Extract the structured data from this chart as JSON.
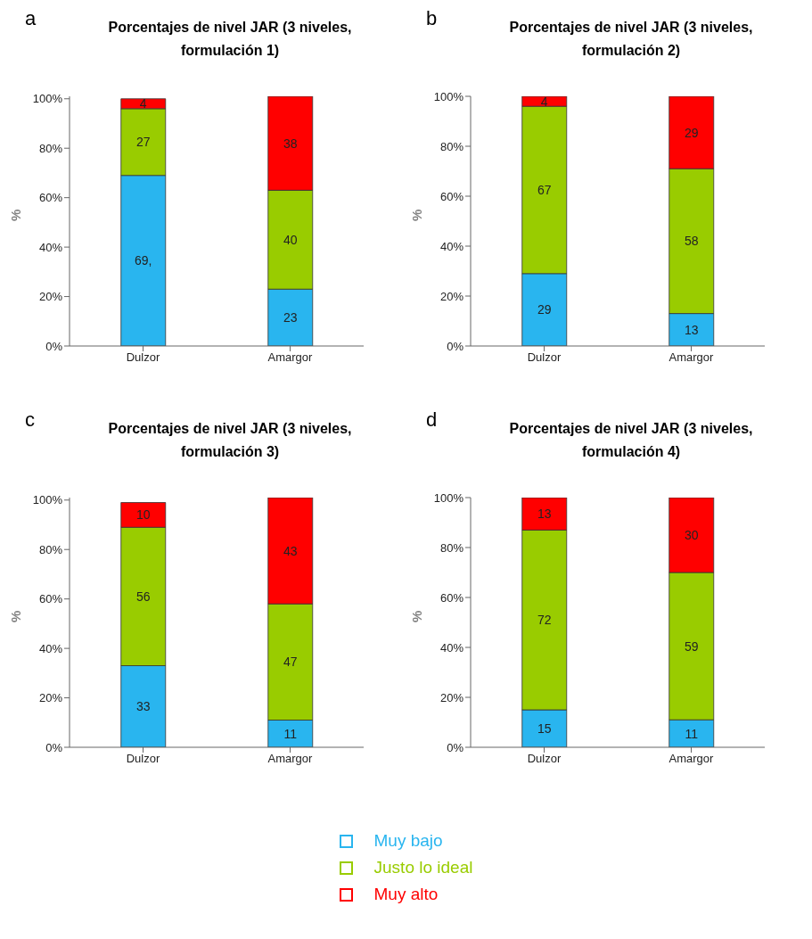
{
  "chart_data": [
    {
      "type": "bar",
      "title": "Porcentajes de nivel JAR (3 niveles, formulación 1)",
      "annotations": [
        "a"
      ],
      "ylabel": "%",
      "categories": [
        "Dulzor",
        "Amargor"
      ],
      "stacked": true,
      "ylim": [
        0,
        101
      ],
      "yticks": [
        {
          "value": 0,
          "label": "0%"
        },
        {
          "value": 20,
          "label": "20%"
        },
        {
          "value": 40,
          "label": "40%"
        },
        {
          "value": 60,
          "label": "60%"
        },
        {
          "value": 80,
          "label": "80%"
        },
        {
          "value": 100,
          "label": "100%"
        }
      ],
      "grid": false,
      "series": [
        {
          "color": "#29b5ef",
          "values": [
            69,
            23
          ],
          "value_labels": [
            "69,",
            "23"
          ]
        },
        {
          "color": "#99cc00",
          "values": [
            27,
            40
          ],
          "value_labels": [
            "27",
            "40"
          ]
        },
        {
          "color": "#ff0000",
          "values": [
            4,
            38
          ],
          "value_labels": [
            "4",
            "38"
          ]
        }
      ]
    },
    {
      "type": "bar",
      "title": "Porcentajes de nivel JAR (3 niveles, formulación 2)",
      "annotations": [
        "b"
      ],
      "ylabel": "%",
      "categories": [
        "Dulzor",
        "Amargor"
      ],
      "stacked": true,
      "ylim": [
        0,
        100
      ],
      "yticks": [
        {
          "value": 0,
          "label": "0%"
        },
        {
          "value": 20,
          "label": "20%"
        },
        {
          "value": 40,
          "label": "40%"
        },
        {
          "value": 60,
          "label": "60%"
        },
        {
          "value": 80,
          "label": "80%"
        },
        {
          "value": 100,
          "label": "100%"
        }
      ],
      "grid": false,
      "data_labels": true,
      "series": [
        {
          "color": "#29b5ef",
          "values": [
            29,
            13
          ]
        },
        {
          "color": "#99cc00",
          "values": [
            67,
            58
          ]
        },
        {
          "color": "#ff0000",
          "values": [
            4,
            29
          ]
        }
      ]
    },
    {
      "type": "bar",
      "title": "Porcentajes de nivel JAR (3 niveles, formulación 3)",
      "annotations": [
        "c"
      ],
      "ylabel": "%",
      "categories": [
        "Dulzor",
        "Amargor"
      ],
      "stacked": true,
      "ylim": [
        0,
        101
      ],
      "yticks": [
        {
          "value": 0,
          "label": "0%"
        },
        {
          "value": 20,
          "label": "20%"
        },
        {
          "value": 40,
          "label": "40%"
        },
        {
          "value": 60,
          "label": "60%"
        },
        {
          "value": 80,
          "label": "80%"
        },
        {
          "value": 100,
          "label": "100%"
        }
      ],
      "grid": false,
      "data_labels": true,
      "series": [
        {
          "color": "#29b5ef",
          "values": [
            33,
            11
          ]
        },
        {
          "color": "#99cc00",
          "values": [
            56,
            47
          ]
        },
        {
          "color": "#ff0000",
          "values": [
            10,
            43
          ]
        }
      ]
    },
    {
      "type": "bar",
      "title": "Porcentajes de nivel JAR (3 niveles, formulación 4)",
      "annotations": [
        "d"
      ],
      "ylabel": "%",
      "categories": [
        "Dulzor",
        "Amargor"
      ],
      "stacked": true,
      "ylim": [
        0,
        100
      ],
      "yticks": [
        {
          "value": 0,
          "label": "0%"
        },
        {
          "value": 20,
          "label": "20%"
        },
        {
          "value": 40,
          "label": "40%"
        },
        {
          "value": 60,
          "label": "60%"
        },
        {
          "value": 80,
          "label": "80%"
        },
        {
          "value": 100,
          "label": "100%"
        }
      ],
      "grid": false,
      "legend": "bottom",
      "data_labels": true,
      "series": [
        {
          "name": "Muy bajo",
          "color": "#29b5ef",
          "values": [
            15,
            11
          ]
        },
        {
          "name": "Justo lo ideal",
          "color": "#99cc00",
          "values": [
            72,
            59
          ]
        },
        {
          "name": "Muy alto",
          "color": "#ff0000",
          "values": [
            13,
            30
          ]
        }
      ]
    }
  ]
}
